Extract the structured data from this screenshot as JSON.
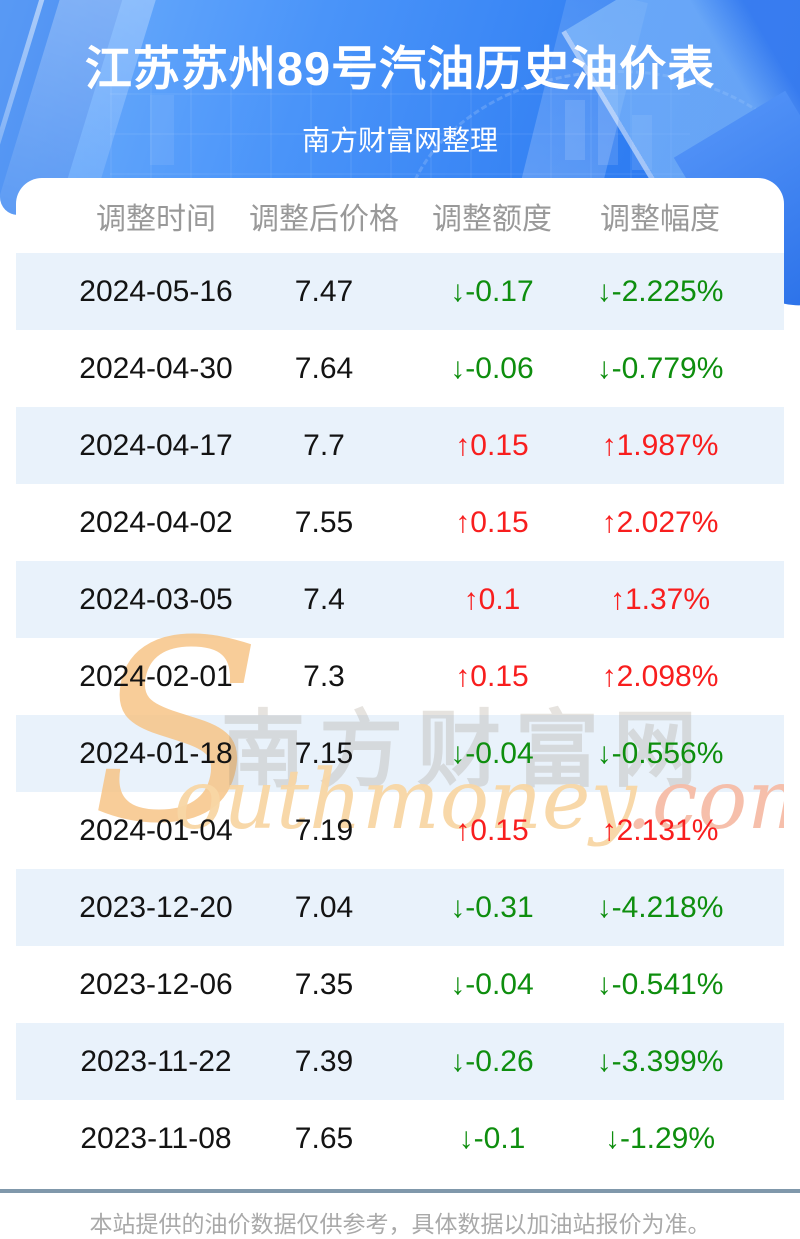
{
  "header": {
    "title": "江苏苏州89号汽油历史油价表",
    "subtitle": "南方财富网整理"
  },
  "table": {
    "columns": [
      "调整时间",
      "调整后价格",
      "调整额度",
      "调整幅度"
    ],
    "rows": [
      {
        "date": "2024-05-16",
        "price": "7.47",
        "change": "↓-0.17",
        "pct": "↓-2.225%",
        "dir": "down"
      },
      {
        "date": "2024-04-30",
        "price": "7.64",
        "change": "↓-0.06",
        "pct": "↓-0.779%",
        "dir": "down"
      },
      {
        "date": "2024-04-17",
        "price": "7.7",
        "change": "↑0.15",
        "pct": "↑1.987%",
        "dir": "up"
      },
      {
        "date": "2024-04-02",
        "price": "7.55",
        "change": "↑0.15",
        "pct": "↑2.027%",
        "dir": "up"
      },
      {
        "date": "2024-03-05",
        "price": "7.4",
        "change": "↑0.1",
        "pct": "↑1.37%",
        "dir": "up"
      },
      {
        "date": "2024-02-01",
        "price": "7.3",
        "change": "↑0.15",
        "pct": "↑2.098%",
        "dir": "up"
      },
      {
        "date": "2024-01-18",
        "price": "7.15",
        "change": "↓-0.04",
        "pct": "↓-0.556%",
        "dir": "down"
      },
      {
        "date": "2024-01-04",
        "price": "7.19",
        "change": "↑0.15",
        "pct": "↑2.131%",
        "dir": "up"
      },
      {
        "date": "2023-12-20",
        "price": "7.04",
        "change": "↓-0.31",
        "pct": "↓-4.218%",
        "dir": "down"
      },
      {
        "date": "2023-12-06",
        "price": "7.35",
        "change": "↓-0.04",
        "pct": "↓-0.541%",
        "dir": "down"
      },
      {
        "date": "2023-11-22",
        "price": "7.39",
        "change": "↓-0.26",
        "pct": "↓-3.399%",
        "dir": "down"
      },
      {
        "date": "2023-11-08",
        "price": "7.65",
        "change": "↓-0.1",
        "pct": "↓-1.29%",
        "dir": "down"
      }
    ]
  },
  "watermark": {
    "initial": "S",
    "brand_cjk": "南方财富网",
    "brand_latin": "outhmoney",
    "brand_domain": ".com"
  },
  "footer": {
    "note": "本站提供的油价数据仅供参考，具体数据以加油站报价为准。"
  },
  "colors": {
    "up_red": "#f81e1e",
    "down_green": "#0e8e0e",
    "banner_blue": "#3e8cf7",
    "row_alt_blue": "#e9f2fb",
    "divider_blue_gray": "#8098ab",
    "header_text_gray": "#999999"
  }
}
